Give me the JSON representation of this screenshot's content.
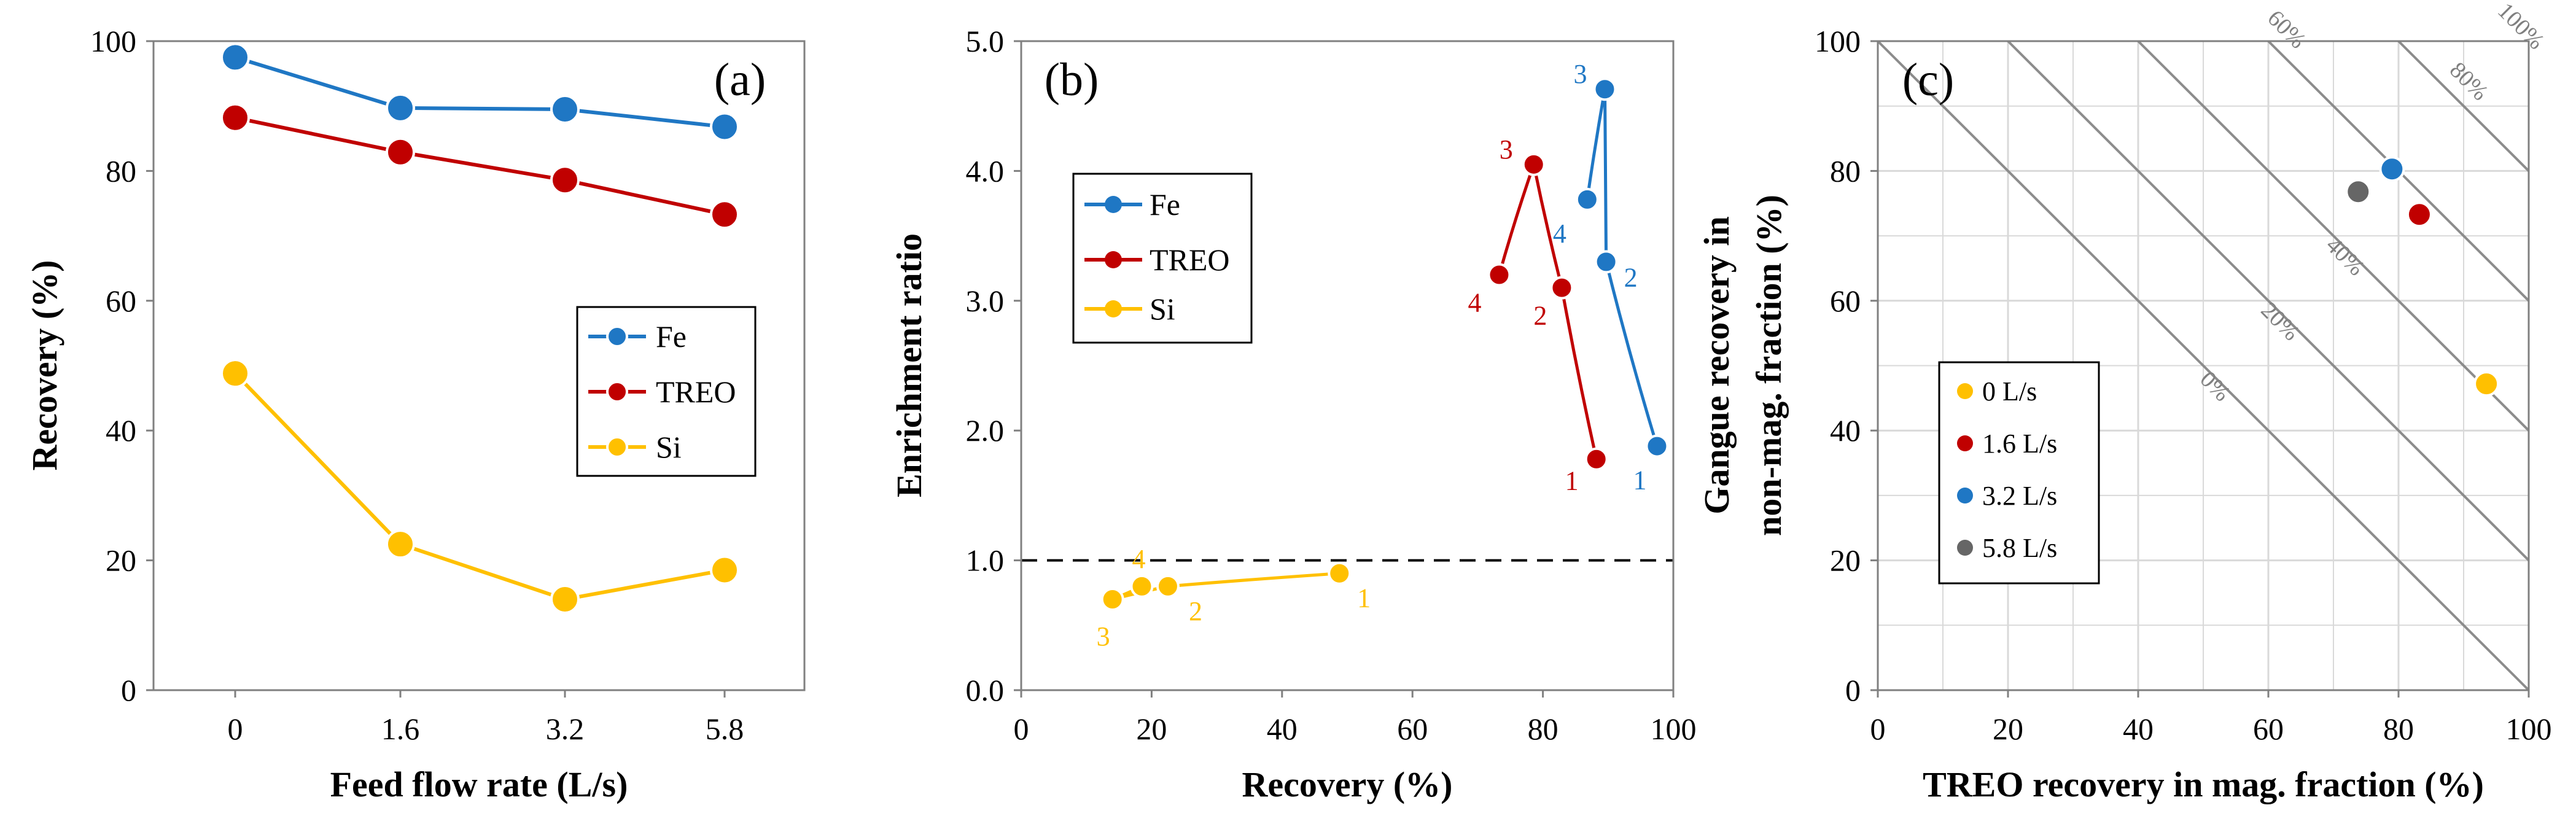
{
  "colors": {
    "fe": "#1f77c4",
    "treo": "#c00000",
    "si": "#ffc000",
    "l58": "#666666",
    "axis": "#808080",
    "grid": "#d9d9d9",
    "diag": "#8c8c8c",
    "text": "#000000"
  },
  "chart_data": [
    {
      "id": "a",
      "type": "line",
      "panel_label": "(a)",
      "xlabel": "Feed flow rate (L/s)",
      "ylabel": "Recovery (%)",
      "categories": [
        "0",
        "1.6",
        "3.2",
        "5.8"
      ],
      "ylim": [
        0,
        100
      ],
      "yticks": [
        "0",
        "20",
        "40",
        "60",
        "80",
        "100"
      ],
      "grid": false,
      "legend": "center-right",
      "series": [
        {
          "name": "Fe",
          "key": "fe",
          "values": [
            97.5,
            89.7,
            89.5,
            86.8
          ]
        },
        {
          "name": "TREO",
          "key": "treo",
          "values": [
            88.2,
            82.9,
            78.6,
            73.3
          ]
        },
        {
          "name": "Si",
          "key": "si",
          "values": [
            48.8,
            22.5,
            14.0,
            18.5
          ]
        }
      ]
    },
    {
      "id": "b",
      "type": "line",
      "panel_label": "(b)",
      "xlabel": "Recovery (%)",
      "ylabel": "Enrichment ratio",
      "xlim": [
        0,
        100
      ],
      "ylim": [
        0,
        5
      ],
      "xticks": [
        "0",
        "20",
        "40",
        "60",
        "80",
        "100"
      ],
      "yticks": [
        "0.0",
        "1.0",
        "2.0",
        "3.0",
        "4.0",
        "5.0"
      ],
      "reference_line": 1.0,
      "grid": false,
      "legend": "top-left",
      "series": [
        {
          "name": "Fe",
          "key": "fe",
          "points": [
            {
              "x": 97.5,
              "y": 1.88,
              "label": "1"
            },
            {
              "x": 89.7,
              "y": 3.3,
              "label": "2"
            },
            {
              "x": 89.5,
              "y": 4.63,
              "label": "3"
            },
            {
              "x": 86.8,
              "y": 3.78,
              "label": "4"
            }
          ]
        },
        {
          "name": "TREO",
          "key": "treo",
          "points": [
            {
              "x": 88.2,
              "y": 1.78,
              "label": "1"
            },
            {
              "x": 82.9,
              "y": 3.1,
              "label": "2"
            },
            {
              "x": 78.6,
              "y": 4.05,
              "label": "3"
            },
            {
              "x": 73.3,
              "y": 3.2,
              "label": "4"
            }
          ]
        },
        {
          "name": "Si",
          "key": "si",
          "points": [
            {
              "x": 48.8,
              "y": 0.9,
              "label": "1"
            },
            {
              "x": 22.5,
              "y": 0.8,
              "label": "2"
            },
            {
              "x": 14.0,
              "y": 0.7,
              "label": "3"
            },
            {
              "x": 18.5,
              "y": 0.8,
              "label": "4"
            }
          ]
        }
      ]
    },
    {
      "id": "c",
      "type": "scatter",
      "panel_label": "(c)",
      "xlabel": "TREO recovery in mag. fraction (%)",
      "ylabel_line1": "Gangue recovery in",
      "ylabel_line2": "non-mag. fraction (%)",
      "xlim": [
        0,
        100
      ],
      "ylim": [
        0,
        100
      ],
      "xticks": [
        "0",
        "20",
        "40",
        "60",
        "80",
        "100"
      ],
      "yticks": [
        "0",
        "20",
        "40",
        "60",
        "80",
        "100"
      ],
      "grid": true,
      "legend": "bottom-left",
      "efficiency_lines": [
        {
          "value": 0,
          "label": "0%"
        },
        {
          "value": 20,
          "label": "20%"
        },
        {
          "value": 40,
          "label": "40%"
        },
        {
          "value": 60,
          "label": "60%"
        },
        {
          "value": 80,
          "label": "80%"
        },
        {
          "value": 100,
          "label": "100%"
        }
      ],
      "series": [
        {
          "name": "0 L/s",
          "key": "si",
          "x": 93.5,
          "y": 47.2
        },
        {
          "name": "1.6 L/s",
          "key": "treo",
          "x": 83.2,
          "y": 73.3
        },
        {
          "name": "3.2 L/s",
          "key": "fe",
          "x": 79.0,
          "y": 80.3
        },
        {
          "name": "5.8 L/s",
          "key": "l58",
          "x": 73.8,
          "y": 76.8
        }
      ]
    }
  ]
}
